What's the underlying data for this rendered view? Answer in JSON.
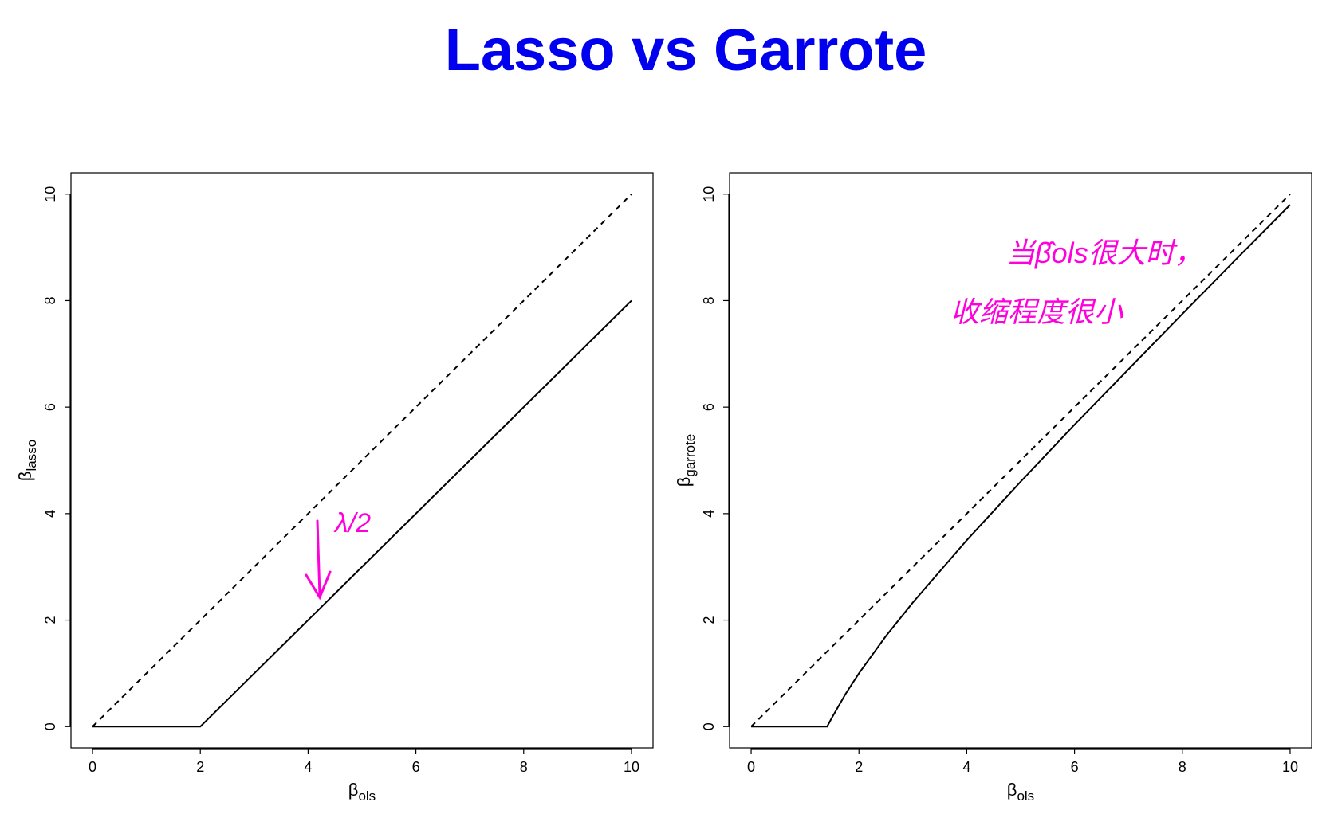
{
  "title": "Lasso vs Garrote",
  "chart_data": [
    {
      "type": "line",
      "xlabel": {
        "text": "β",
        "sub": "ols"
      },
      "ylabel": {
        "text": "β",
        "sub": "lasso"
      },
      "xlim": [
        -0.4,
        10.4
      ],
      "ylim": [
        -0.4,
        10.4
      ],
      "xticks": [
        0,
        2,
        4,
        6,
        8,
        10
      ],
      "yticks": [
        0,
        2,
        4,
        6,
        8,
        10
      ],
      "series": [
        {
          "style": "dashed",
          "color": "#000000",
          "x": [
            0,
            10
          ],
          "values": [
            0,
            10
          ]
        },
        {
          "style": "solid",
          "color": "#000000",
          "x": [
            0,
            2,
            10
          ],
          "values": [
            0,
            0,
            8
          ]
        }
      ],
      "annotations": [
        "λ/2"
      ],
      "annotation_color": "#ff00dd"
    },
    {
      "type": "line",
      "xlabel": {
        "text": "β",
        "sub": "ols"
      },
      "ylabel": {
        "text": "β",
        "sub": "garrote"
      },
      "xlim": [
        -0.4,
        10.4
      ],
      "ylim": [
        -0.4,
        10.4
      ],
      "xticks": [
        0,
        2,
        4,
        6,
        8,
        10
      ],
      "yticks": [
        0,
        2,
        4,
        6,
        8,
        10
      ],
      "series": [
        {
          "style": "dashed",
          "color": "#000000",
          "x": [
            0,
            10
          ],
          "values": [
            0,
            10
          ]
        },
        {
          "style": "solid",
          "color": "#000000",
          "x": [
            0,
            1.41,
            1.5,
            1.75,
            2,
            2.5,
            3,
            4,
            5,
            6,
            7,
            8,
            9,
            10
          ],
          "values": [
            0,
            0,
            0.17,
            0.61,
            1,
            1.7,
            2.33,
            3.5,
            4.6,
            5.67,
            6.71,
            7.75,
            8.78,
            9.8
          ]
        }
      ],
      "annotations": [
        "当β̂ols很大时，",
        "收缩程度很小"
      ],
      "annotation_color": "#ff00dd"
    }
  ]
}
